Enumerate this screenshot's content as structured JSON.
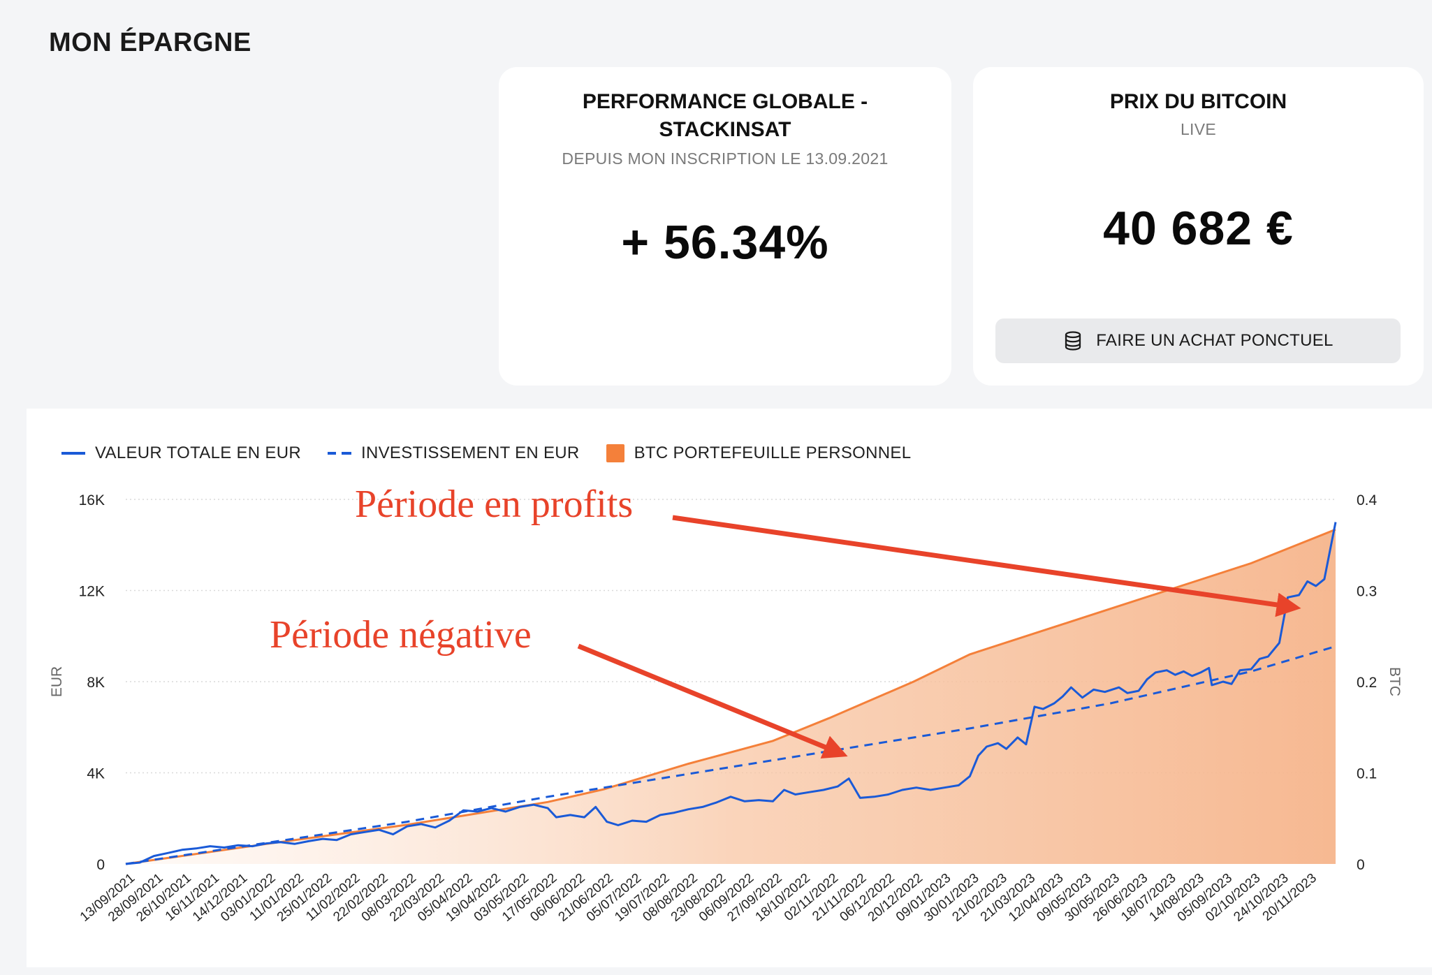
{
  "page": {
    "title": "MON ÉPARGNE"
  },
  "performance_card": {
    "title": "PERFORMANCE GLOBALE - STACKINSAT",
    "subtitle": "DEPUIS MON INSCRIPTION LE 13.09.2021",
    "value": "+ 56.34%"
  },
  "bitcoin_card": {
    "title": "PRIX DU BITCOIN",
    "subtitle": "LIVE",
    "value": "40 682 €",
    "button_label": "FAIRE UN ACHAT PONCTUEL",
    "button_icon": "database-icon"
  },
  "colors": {
    "total_value_line": "#1a5ad7",
    "investment_line": "#1a5ad7",
    "btc_area": "#f4803a",
    "annotation": "#e8432a"
  },
  "chart_data": {
    "type": "line",
    "title": "",
    "legend": {
      "placement": "top-left",
      "items": [
        {
          "label": "VALEUR TOTALE EN EUR",
          "style": "solid-line"
        },
        {
          "label": "INVESTISSEMENT EN EUR",
          "style": "dashed-line"
        },
        {
          "label": "BTC PORTEFEUILLE PERSONNEL",
          "style": "area"
        }
      ]
    },
    "y_left": {
      "label": "EUR",
      "range": [
        0,
        16000
      ],
      "ticks": [
        "0",
        "4K",
        "8K",
        "12K",
        "16K"
      ],
      "tick_values": [
        0,
        4000,
        8000,
        12000,
        16000
      ]
    },
    "y_right": {
      "label": "BTC",
      "range": [
        0,
        0.4
      ],
      "ticks": [
        "0",
        "0.1",
        "0.2",
        "0.3",
        "0.4"
      ],
      "tick_values": [
        0,
        0.1,
        0.2,
        0.3,
        0.4
      ]
    },
    "x_labels": [
      "13/09/2021",
      "28/09/2021",
      "26/10/2021",
      "16/11/2021",
      "14/12/2021",
      "03/01/2022",
      "11/01/2022",
      "25/01/2022",
      "11/02/2022",
      "22/02/2022",
      "08/03/2022",
      "22/03/2022",
      "05/04/2022",
      "19/04/2022",
      "03/05/2022",
      "17/05/2022",
      "06/06/2022",
      "21/06/2022",
      "05/07/2022",
      "19/07/2022",
      "08/08/2022",
      "23/08/2022",
      "06/09/2022",
      "27/09/2022",
      "18/10/2022",
      "02/11/2022",
      "21/11/2022",
      "06/12/2022",
      "20/12/2022",
      "09/01/2023",
      "30/01/2023",
      "21/02/2023",
      "21/03/2023",
      "12/04/2023",
      "09/05/2023",
      "30/05/2023",
      "26/06/2023",
      "18/07/2023",
      "14/08/2023",
      "05/09/2023",
      "02/10/2023",
      "24/10/2023",
      "20/11/2023"
    ],
    "grid": true,
    "series": [
      {
        "name": "VALEUR TOTALE EN EUR",
        "axis": "left",
        "points": [
          [
            0,
            0
          ],
          [
            0.5,
            60
          ],
          [
            1,
            350
          ],
          [
            1.5,
            480
          ],
          [
            2,
            620
          ],
          [
            2.5,
            680
          ],
          [
            3,
            780
          ],
          [
            3.5,
            720
          ],
          [
            4,
            820
          ],
          [
            4.5,
            780
          ],
          [
            5,
            900
          ],
          [
            5.5,
            960
          ],
          [
            6,
            880
          ],
          [
            6.5,
            1000
          ],
          [
            7,
            1100
          ],
          [
            7.5,
            1050
          ],
          [
            8,
            1300
          ],
          [
            8.5,
            1400
          ],
          [
            9,
            1500
          ],
          [
            9.5,
            1300
          ],
          [
            10,
            1650
          ],
          [
            10.5,
            1750
          ],
          [
            11,
            1600
          ],
          [
            11.5,
            1900
          ],
          [
            12,
            2350
          ],
          [
            12.5,
            2300
          ],
          [
            13,
            2450
          ],
          [
            13.5,
            2300
          ],
          [
            14,
            2500
          ],
          [
            14.5,
            2600
          ],
          [
            15,
            2450
          ],
          [
            15.3,
            2050
          ],
          [
            15.8,
            2150
          ],
          [
            16.3,
            2050
          ],
          [
            16.7,
            2500
          ],
          [
            17.1,
            1850
          ],
          [
            17.5,
            1700
          ],
          [
            18,
            1900
          ],
          [
            18.5,
            1850
          ],
          [
            19,
            2150
          ],
          [
            19.5,
            2250
          ],
          [
            20,
            2400
          ],
          [
            20.5,
            2500
          ],
          [
            21,
            2700
          ],
          [
            21.5,
            2950
          ],
          [
            22,
            2750
          ],
          [
            22.5,
            2800
          ],
          [
            23,
            2750
          ],
          [
            23.4,
            3250
          ],
          [
            23.8,
            3050
          ],
          [
            24.3,
            3150
          ],
          [
            24.8,
            3250
          ],
          [
            25.3,
            3400
          ],
          [
            25.7,
            3750
          ],
          [
            26.1,
            2900
          ],
          [
            26.6,
            2950
          ],
          [
            27.1,
            3050
          ],
          [
            27.6,
            3250
          ],
          [
            28.1,
            3350
          ],
          [
            28.6,
            3250
          ],
          [
            29.1,
            3350
          ],
          [
            29.6,
            3450
          ],
          [
            30,
            3850
          ],
          [
            30.3,
            4750
          ],
          [
            30.6,
            5150
          ],
          [
            31,
            5300
          ],
          [
            31.3,
            5050
          ],
          [
            31.7,
            5550
          ],
          [
            32,
            5250
          ],
          [
            32.3,
            6900
          ],
          [
            32.6,
            6800
          ],
          [
            33,
            7050
          ],
          [
            33.3,
            7350
          ],
          [
            33.6,
            7750
          ],
          [
            34,
            7300
          ],
          [
            34.4,
            7650
          ],
          [
            34.8,
            7550
          ],
          [
            35.3,
            7750
          ],
          [
            35.6,
            7500
          ],
          [
            36,
            7600
          ],
          [
            36.3,
            8100
          ],
          [
            36.6,
            8400
          ],
          [
            37,
            8500
          ],
          [
            37.3,
            8300
          ],
          [
            37.6,
            8450
          ],
          [
            37.9,
            8250
          ],
          [
            38.2,
            8400
          ],
          [
            38.5,
            8600
          ],
          [
            38.6,
            7850
          ],
          [
            39,
            8000
          ],
          [
            39.3,
            7900
          ],
          [
            39.6,
            8500
          ],
          [
            40,
            8550
          ],
          [
            40.3,
            9000
          ],
          [
            40.6,
            9100
          ],
          [
            41,
            9700
          ],
          [
            41.3,
            11700
          ],
          [
            41.7,
            11800
          ],
          [
            42,
            12400
          ],
          [
            42.3,
            12200
          ],
          [
            42.6,
            12500
          ],
          [
            43,
            15000
          ]
        ]
      },
      {
        "name": "INVESTISSEMENT EN EUR",
        "axis": "left",
        "style": "dashed",
        "points": [
          [
            0,
            0
          ],
          [
            10,
            1850
          ],
          [
            15,
            2950
          ],
          [
            20,
            3950
          ],
          [
            25,
            4950
          ],
          [
            30,
            5950
          ],
          [
            35,
            7050
          ],
          [
            40,
            8450
          ],
          [
            43,
            9550
          ]
        ]
      },
      {
        "name": "BTC PORTEFEUILLE PERSONNEL",
        "axis": "right",
        "style": "area",
        "points": [
          [
            0,
            0
          ],
          [
            5,
            0.022
          ],
          [
            10,
            0.043
          ],
          [
            15,
            0.068
          ],
          [
            17,
            0.082
          ],
          [
            20,
            0.11
          ],
          [
            23,
            0.135
          ],
          [
            25,
            0.16
          ],
          [
            28,
            0.2
          ],
          [
            30,
            0.23
          ],
          [
            33,
            0.26
          ],
          [
            35,
            0.28
          ],
          [
            38,
            0.31
          ],
          [
            40,
            0.33
          ],
          [
            43,
            0.367
          ]
        ]
      }
    ],
    "annotations": [
      {
        "text": "Période en profits",
        "arrow_to": [
          41.6,
          11250
        ]
      },
      {
        "text": "Période négative",
        "arrow_to": [
          25.5,
          4800
        ]
      }
    ]
  }
}
